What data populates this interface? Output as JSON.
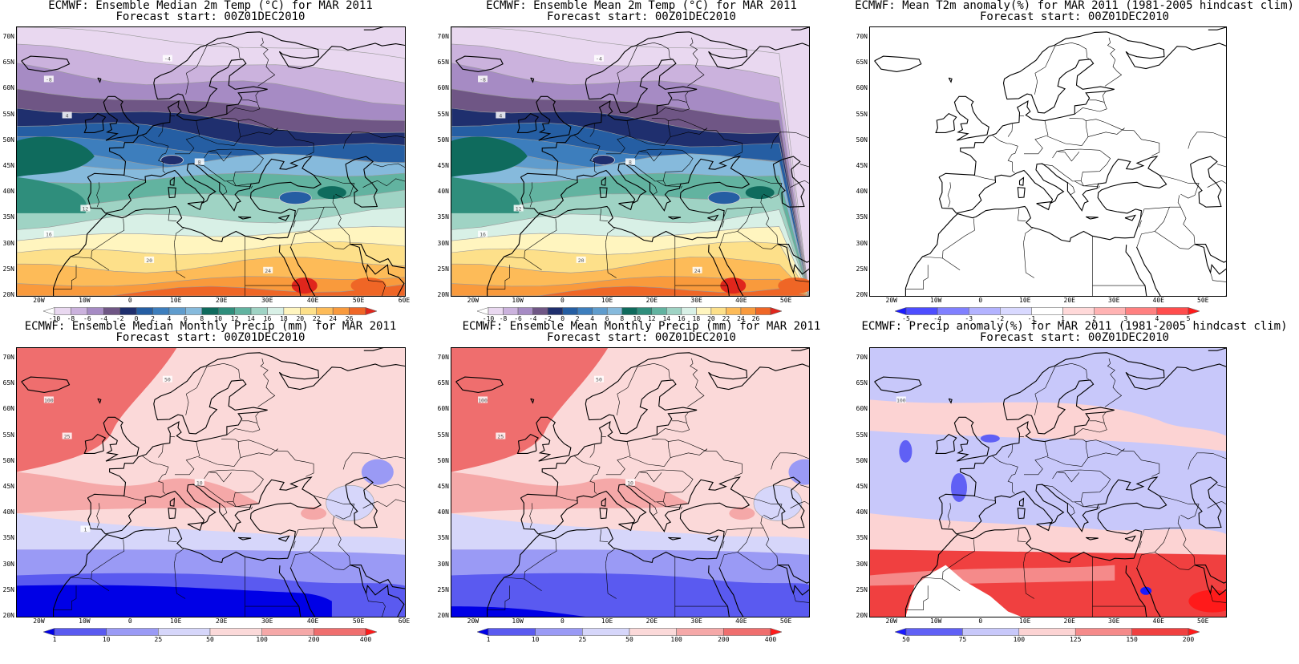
{
  "panels": [
    {
      "title_line1": "ECMWF: Ensemble Median 2m Temp (°C) for MAR 2011",
      "title_line2": "Forecast start: 00Z01DEC2010",
      "lat_labels": [
        "70N",
        "65N",
        "60N",
        "55N",
        "50N",
        "45N",
        "40N",
        "35N",
        "30N",
        "25N",
        "20N"
      ],
      "lon_labels": [
        "20W",
        "10W",
        "0",
        "10E",
        "20E",
        "30E",
        "40E",
        "50E",
        "60E"
      ],
      "colorbar_labels": [
        "-10",
        "-8",
        "-6",
        "-4",
        "-2",
        "0",
        "2",
        "4",
        "6",
        "8",
        "10",
        "12",
        "14",
        "16",
        "18",
        "20",
        "22",
        "24",
        "26"
      ],
      "colorbar_colors": [
        "#ffffff",
        "#e9d8f0",
        "#cbb2dd",
        "#a68bc4",
        "#6f5685",
        "#1f2f6e",
        "#255ea3",
        "#3d7ebd",
        "#5f9ccd",
        "#86badc",
        "#0f6b5d",
        "#2f8e7c",
        "#62b3a0",
        "#9fd3c4",
        "#d8f0e6",
        "#fff5bf",
        "#fde08a",
        "#fdbb58",
        "#f99a3c",
        "#ef6626",
        "#e0261c"
      ],
      "contour_labels": [
        "-8",
        "-4",
        "4",
        "8",
        "12",
        "16",
        "20",
        "24"
      ],
      "palette": "temp"
    },
    {
      "title_line1": "ECMWF: Ensemble Mean 2m Temp (°C) for MAR 2011",
      "title_line2": "Forecast start: 00Z01DEC2010",
      "lat_labels": [
        "70N",
        "65N",
        "60N",
        "55N",
        "50N",
        "45N",
        "40N",
        "35N",
        "30N",
        "25N",
        "20N"
      ],
      "lon_labels": [
        "20W",
        "10W",
        "0",
        "10E",
        "20E",
        "30E",
        "40E",
        "50E"
      ],
      "colorbar_labels": [
        "-10",
        "-8",
        "-6",
        "-4",
        "-2",
        "0",
        "2",
        "4",
        "6",
        "8",
        "10",
        "12",
        "14",
        "16",
        "18",
        "20",
        "22",
        "24",
        "26"
      ],
      "colorbar_colors": [
        "#ffffff",
        "#e9d8f0",
        "#cbb2dd",
        "#a68bc4",
        "#6f5685",
        "#1f2f6e",
        "#255ea3",
        "#3d7ebd",
        "#5f9ccd",
        "#86badc",
        "#0f6b5d",
        "#2f8e7c",
        "#62b3a0",
        "#9fd3c4",
        "#d8f0e6",
        "#fff5bf",
        "#fde08a",
        "#fdbb58",
        "#f99a3c",
        "#ef6626",
        "#e0261c"
      ],
      "contour_labels": [
        "-8",
        "-4",
        "4",
        "8",
        "12",
        "16",
        "20",
        "24"
      ],
      "palette": "temp"
    },
    {
      "title_line1": "ECMWF: Mean T2m anomaly(%) for MAR 2011 (1981-2005 hindcast clim)",
      "title_line2": "Forecast start: 00Z01DEC2010",
      "lat_labels": [
        "70N",
        "65N",
        "60N",
        "55N",
        "50N",
        "45N",
        "40N",
        "35N",
        "30N",
        "25N",
        "20N"
      ],
      "lon_labels": [
        "20W",
        "10W",
        "0",
        "10E",
        "20E",
        "30E",
        "40E",
        "50E"
      ],
      "colorbar_labels": [
        "-5",
        "-4",
        "-3",
        "-2",
        "-1",
        "1",
        "2",
        "3",
        "4",
        "5"
      ],
      "colorbar_colors": [
        "#1a1aff",
        "#4d4dff",
        "#8080ff",
        "#b3b3ff",
        "#d9d9ff",
        "#ffffff",
        "#ffd9d9",
        "#ffb3b3",
        "#ff8080",
        "#ff4d4d",
        "#ff1a1a"
      ],
      "contour_labels": [],
      "palette": "blank"
    },
    {
      "title_line1": "ECMWF: Ensemble Median Monthly Precip (mm) for MAR 2011",
      "title_line2": "Forecast start: 00Z01DEC2010",
      "lat_labels": [
        "70N",
        "65N",
        "60N",
        "55N",
        "50N",
        "45N",
        "40N",
        "35N",
        "30N",
        "25N",
        "20N"
      ],
      "lon_labels": [
        "20W",
        "10W",
        "0",
        "10E",
        "20E",
        "30E",
        "40E",
        "50E",
        "60E"
      ],
      "colorbar_labels": [
        "1",
        "10",
        "25",
        "50",
        "100",
        "200",
        "400"
      ],
      "colorbar_colors": [
        "#0000e6",
        "#5a5af0",
        "#9a9af5",
        "#d6d6fa",
        "#fbd9d9",
        "#f5a8a8",
        "#ef6e6e",
        "#ff1a1a"
      ],
      "contour_labels": [
        "100",
        "50",
        "25",
        "10",
        "1"
      ],
      "palette": "precip"
    },
    {
      "title_line1": "ECMWF: Ensemble Mean Monthly Precip (mm) for MAR 2011",
      "title_line2": "Forecast start: 00Z01DEC2010",
      "lat_labels": [
        "70N",
        "65N",
        "60N",
        "55N",
        "50N",
        "45N",
        "40N",
        "35N",
        "30N",
        "25N",
        "20N"
      ],
      "lon_labels": [
        "20W",
        "10W",
        "0",
        "10E",
        "20E",
        "30E",
        "40E",
        "50E"
      ],
      "colorbar_labels": [
        "1",
        "10",
        "25",
        "50",
        "100",
        "200",
        "400"
      ],
      "colorbar_colors": [
        "#0000e6",
        "#5a5af0",
        "#9a9af5",
        "#d6d6fa",
        "#fbd9d9",
        "#f5a8a8",
        "#ef6e6e",
        "#ff1a1a"
      ],
      "contour_labels": [
        "100",
        "50",
        "25",
        "10"
      ],
      "palette": "precip_mean"
    },
    {
      "title_line1": "ECMWF: Precip anomaly(%) for MAR 2011 (1981-2005 hindcast clim)",
      "title_line2": "Forecast start: 00Z01DEC2010",
      "lat_labels": [
        "70N",
        "65N",
        "60N",
        "55N",
        "50N",
        "45N",
        "40N",
        "35N",
        "30N",
        "25N",
        "20N"
      ],
      "lon_labels": [
        "20W",
        "10W",
        "0",
        "10E",
        "20E",
        "30E",
        "40E",
        "50E"
      ],
      "colorbar_labels": [
        "50",
        "75",
        "100",
        "125",
        "150",
        "200"
      ],
      "colorbar_colors": [
        "#1a1aff",
        "#6060f5",
        "#c8c8fa",
        "#fcd3d3",
        "#f58a8a",
        "#f04040",
        "#ff1a1a"
      ],
      "contour_labels": [
        "100"
      ],
      "palette": "anom"
    }
  ]
}
